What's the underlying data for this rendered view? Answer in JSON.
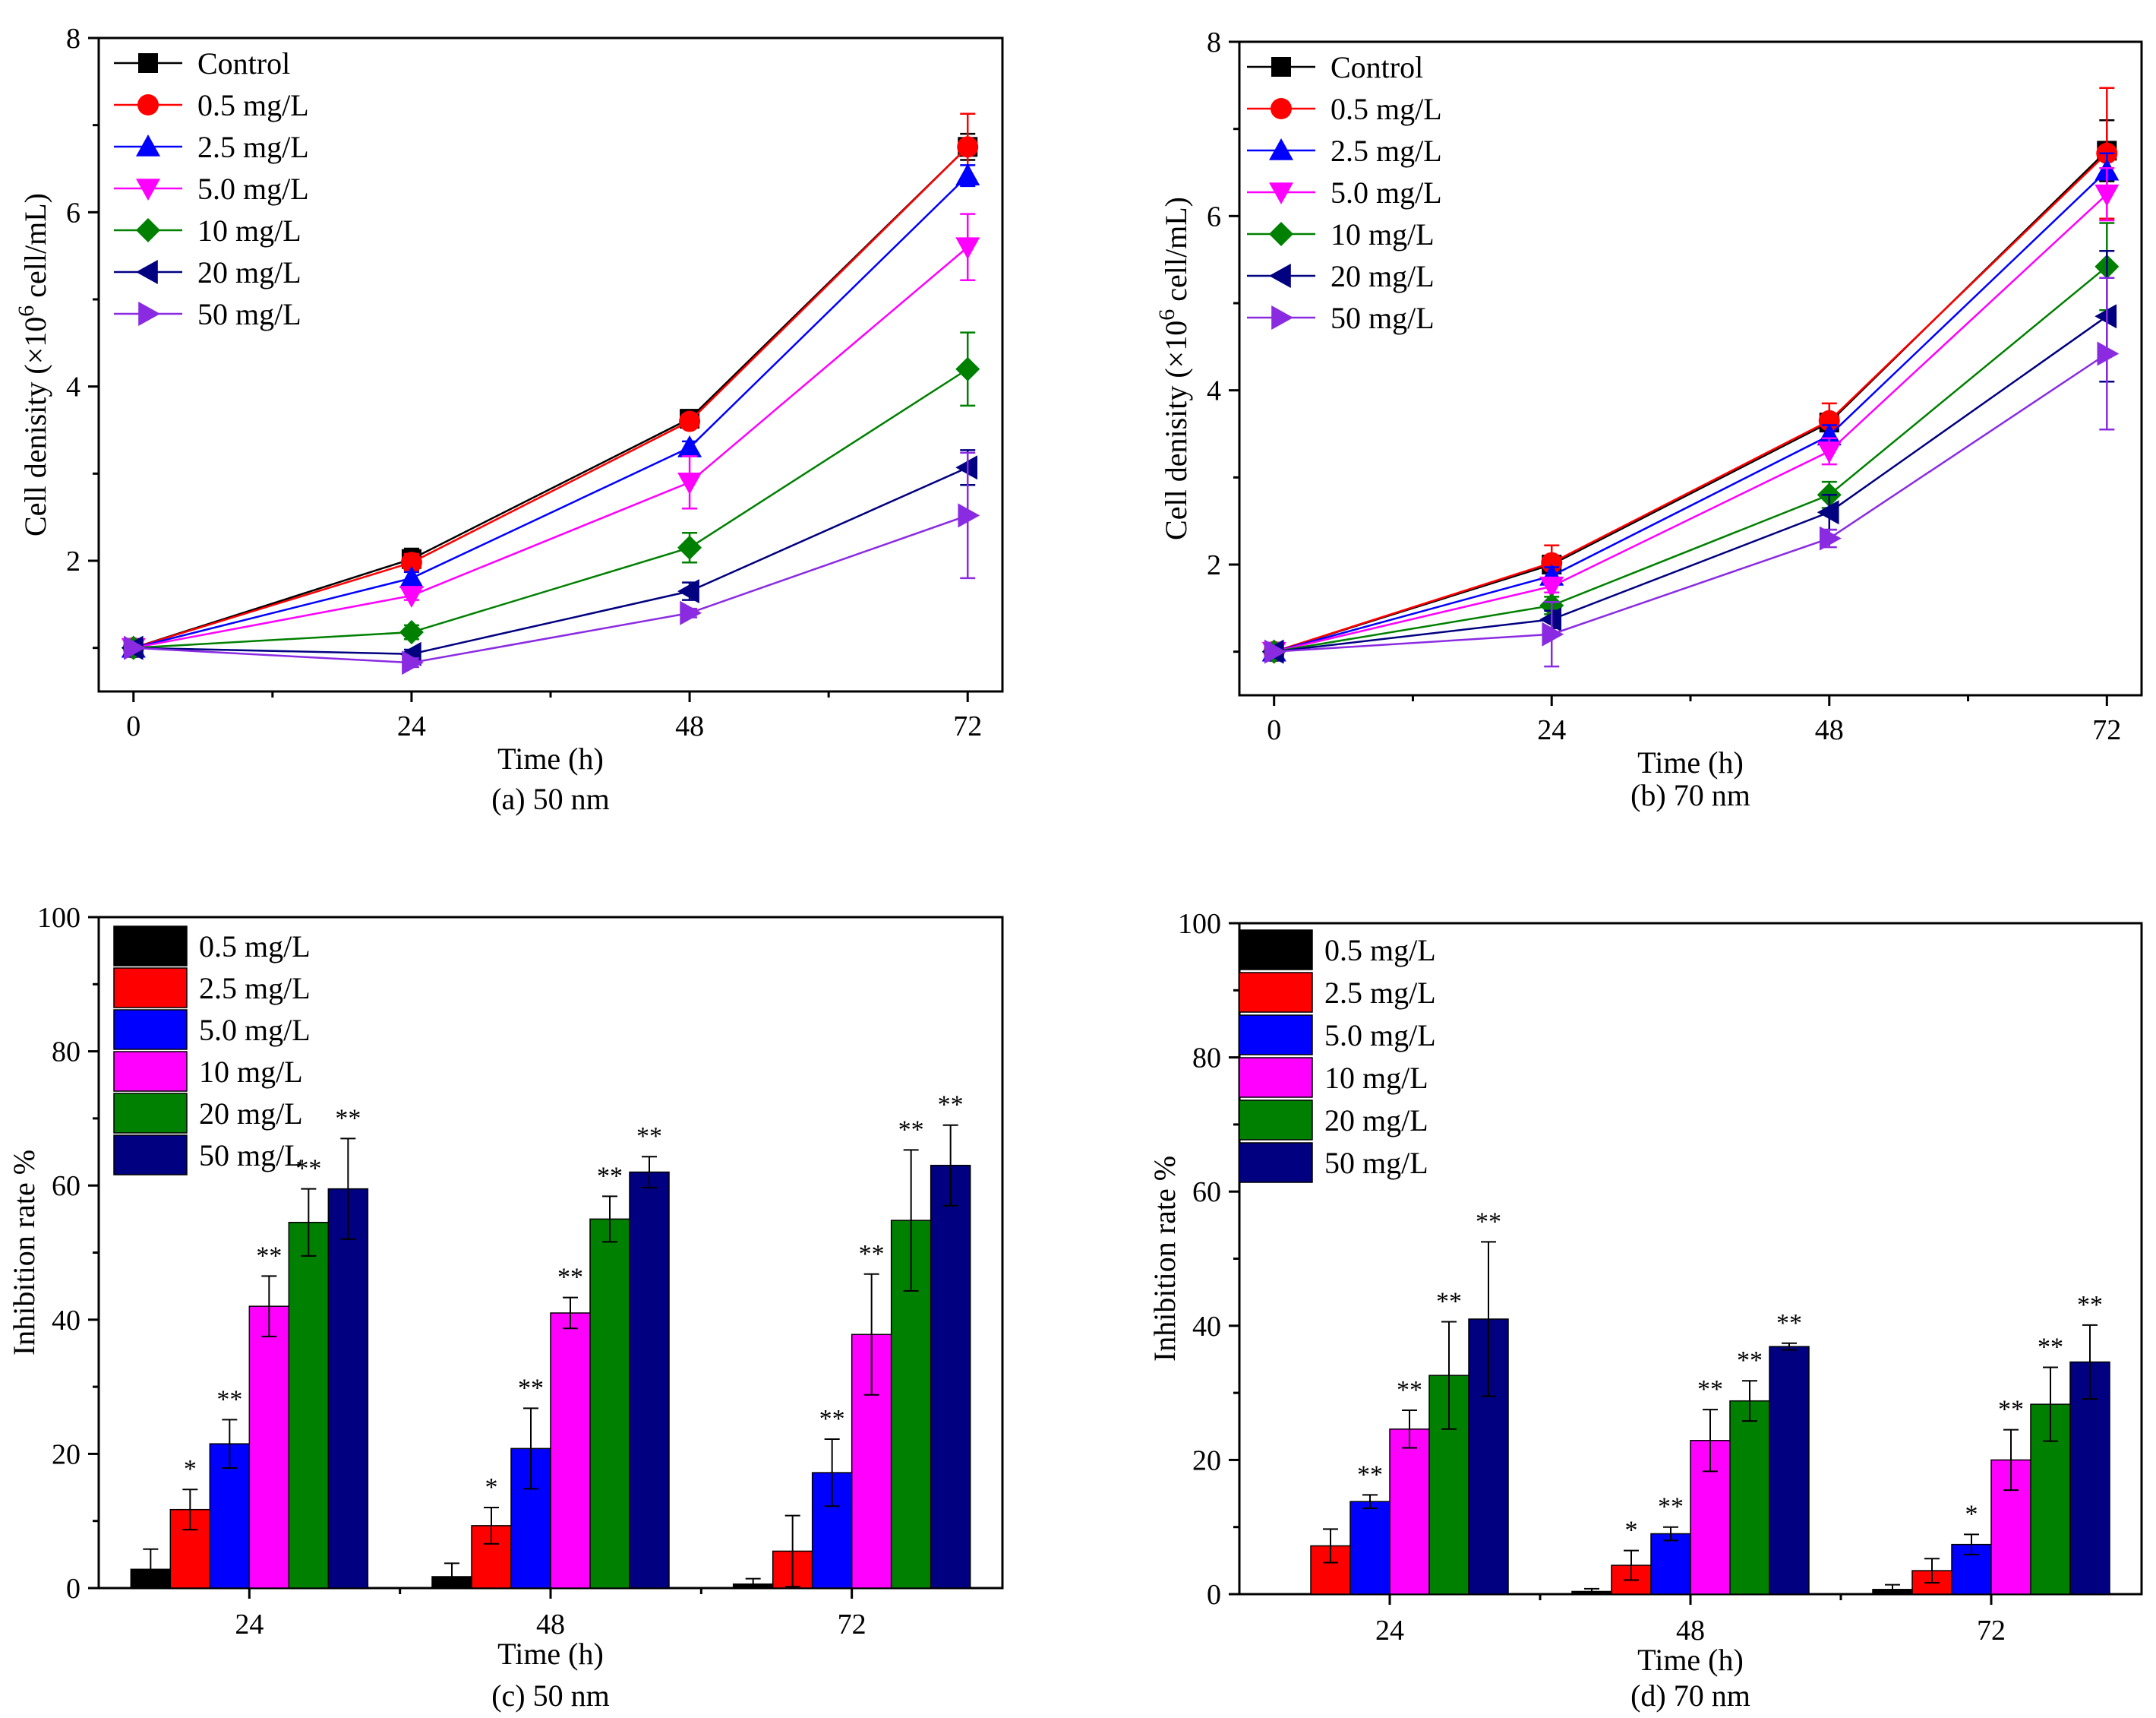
{
  "chart_data": [
    {
      "id": "a",
      "type": "line",
      "caption": "(a) 50 nm",
      "xlabel": "Time (h)",
      "ylabel_main": "Cell denisity (×10",
      "ylabel_sup": "6",
      "ylabel_tail": " cell/mL)",
      "x": [
        0,
        24,
        48,
        72
      ],
      "xticks": [
        "0",
        "24",
        "48",
        "72"
      ],
      "xlim": [
        -3,
        75
      ],
      "ylim": [
        0.5,
        8
      ],
      "yticks": [
        2,
        4,
        6,
        8
      ],
      "yticklabels": [
        "2",
        "4",
        "6",
        "8"
      ],
      "series": [
        {
          "name": "Control",
          "color": "#000000",
          "marker": "square",
          "values": [
            1.0,
            2.02,
            3.63,
            6.75
          ],
          "err": [
            0,
            0.12,
            0.05,
            0.15
          ]
        },
        {
          "name": "0.5 mg/L",
          "color": "#ff0000",
          "marker": "circle",
          "values": [
            1.0,
            1.98,
            3.6,
            6.75
          ],
          "err": [
            0,
            0.1,
            0.06,
            0.38
          ]
        },
        {
          "name": "2.5 mg/L",
          "color": "#0000ff",
          "marker": "triangle-up",
          "values": [
            1.0,
            1.8,
            3.3,
            6.42
          ],
          "err": [
            0,
            0.07,
            0.07,
            0.12
          ]
        },
        {
          "name": "5.0 mg/L",
          "color": "#ff00ff",
          "marker": "triangle-down",
          "values": [
            1.0,
            1.6,
            2.9,
            5.6
          ],
          "err": [
            0,
            0.05,
            0.3,
            0.38
          ]
        },
        {
          "name": "10  mg/L",
          "color": "#008000",
          "marker": "diamond",
          "values": [
            1.0,
            1.18,
            2.15,
            4.2
          ],
          "err": [
            0,
            0.08,
            0.17,
            0.42
          ]
        },
        {
          "name": "20  mg/L",
          "color": "#000080",
          "marker": "triangle-left",
          "values": [
            1.0,
            0.93,
            1.65,
            3.07
          ],
          "err": [
            0,
            0.05,
            0.1,
            0.2
          ]
        },
        {
          "name": "50  mg/L",
          "color": "#8a2be2",
          "marker": "triangle-right",
          "values": [
            1.0,
            0.83,
            1.4,
            2.52
          ],
          "err": [
            0,
            0.05,
            0.05,
            0.72
          ]
        }
      ]
    },
    {
      "id": "b",
      "type": "line",
      "caption": "(b) 70 nm",
      "xlabel": "Time (h)",
      "ylabel_main": "Cell denisity (×10",
      "ylabel_sup": "6",
      "ylabel_tail": " cell/mL)",
      "x": [
        0,
        24,
        48,
        72
      ],
      "xticks": [
        "0",
        "24",
        "48",
        "72"
      ],
      "xlim": [
        -3,
        75
      ],
      "ylim": [
        0.5,
        8
      ],
      "yticks": [
        2,
        4,
        6,
        8
      ],
      "yticklabels": [
        "2",
        "4",
        "6",
        "8"
      ],
      "series": [
        {
          "name": "Control",
          "color": "#000000",
          "marker": "square",
          "values": [
            1.0,
            2.0,
            3.63,
            6.75
          ],
          "err": [
            0,
            0.1,
            0.08,
            0.35
          ]
        },
        {
          "name": "0.5 mg/L",
          "color": "#ff0000",
          "marker": "circle",
          "values": [
            1.0,
            2.02,
            3.65,
            6.72
          ],
          "err": [
            0,
            0.2,
            0.2,
            0.75
          ]
        },
        {
          "name": "2.5 mg/L",
          "color": "#0000ff",
          "marker": "triangle-up",
          "values": [
            1.0,
            1.87,
            3.48,
            6.52
          ],
          "err": [
            0,
            0.1,
            0.12,
            0.2
          ]
        },
        {
          "name": "5.0 mg/L",
          "color": "#ff00ff",
          "marker": "triangle-down",
          "values": [
            1.0,
            1.75,
            3.3,
            6.25
          ],
          "err": [
            0,
            0.07,
            0.15,
            0.3
          ]
        },
        {
          "name": "10  mg/L",
          "color": "#008000",
          "marker": "diamond",
          "values": [
            1.0,
            1.53,
            2.8,
            5.42
          ],
          "err": [
            0,
            0.1,
            0.15,
            0.5
          ]
        },
        {
          "name": "20  mg/L",
          "color": "#000080",
          "marker": "triangle-left",
          "values": [
            1.0,
            1.37,
            2.6,
            4.85
          ],
          "err": [
            0,
            0.1,
            0.2,
            0.75
          ]
        },
        {
          "name": "50  mg/L",
          "color": "#8a2be2",
          "marker": "triangle-right",
          "values": [
            1.0,
            1.2,
            2.3,
            4.42
          ],
          "err": [
            0,
            0.37,
            0.1,
            0.87
          ]
        }
      ]
    },
    {
      "id": "c",
      "type": "bar",
      "caption": "(c) 50 nm",
      "xlabel": "Time (h)",
      "ylabel": "Inhibition rate %",
      "categories": [
        "24",
        "48",
        "72"
      ],
      "ylim": [
        0,
        100
      ],
      "yticks": [
        0,
        20,
        40,
        60,
        80,
        100
      ],
      "yticklabels": [
        "0",
        "20",
        "40",
        "60",
        "80",
        "100"
      ],
      "series": [
        {
          "name": "0.5 mg/L",
          "color": "#000000",
          "values": [
            2.8,
            1.7,
            0.6
          ],
          "err": [
            3.0,
            2.0,
            0.8
          ],
          "sig": [
            "",
            "",
            ""
          ]
        },
        {
          "name": "2.5 mg/L",
          "color": "#ff0000",
          "values": [
            11.7,
            9.3,
            5.5
          ],
          "err": [
            3.0,
            2.7,
            5.3
          ],
          "sig": [
            "*",
            "*",
            ""
          ]
        },
        {
          "name": "5.0 mg/L",
          "color": "#0000ff",
          "values": [
            21.5,
            20.8,
            17.2
          ],
          "err": [
            3.6,
            6.0,
            5.0
          ],
          "sig": [
            "**",
            "**",
            "**"
          ]
        },
        {
          "name": "10  mg/L",
          "color": "#ff00ff",
          "values": [
            42.0,
            41.0,
            37.8
          ],
          "err": [
            4.5,
            2.3,
            9.0
          ],
          "sig": [
            "**",
            "**",
            "**"
          ]
        },
        {
          "name": "20  mg/L",
          "color": "#008000",
          "values": [
            54.5,
            55.0,
            54.8
          ],
          "err": [
            5.0,
            3.4,
            10.5
          ],
          "sig": [
            "**",
            "**",
            "**"
          ]
        },
        {
          "name": "50  mg/L",
          "color": "#000080",
          "values": [
            59.5,
            62.0,
            63.0
          ],
          "err": [
            7.5,
            2.3,
            6.0
          ],
          "sig": [
            "**",
            "**",
            "**"
          ]
        }
      ]
    },
    {
      "id": "d",
      "type": "bar",
      "caption": "(d) 70 nm",
      "xlabel": "Time (h)",
      "ylabel": "Inhibition rate %",
      "categories": [
        "24",
        "48",
        "72"
      ],
      "ylim": [
        0,
        100
      ],
      "yticks": [
        0,
        20,
        40,
        60,
        80,
        100
      ],
      "yticklabels": [
        "0",
        "20",
        "40",
        "60",
        "80",
        "100"
      ],
      "series": [
        {
          "name": "0.5 mg/L",
          "color": "#000000",
          "values": [
            0,
            0.4,
            0.7
          ],
          "err": [
            0,
            0.4,
            0.7
          ],
          "sig": [
            "",
            "",
            ""
          ]
        },
        {
          "name": "2.5 mg/L",
          "color": "#ff0000",
          "values": [
            7.2,
            4.3,
            3.5
          ],
          "err": [
            2.5,
            2.2,
            1.8
          ],
          "sig": [
            "",
            "*",
            ""
          ]
        },
        {
          "name": "5.0 mg/L",
          "color": "#0000ff",
          "values": [
            13.8,
            9.0,
            7.4
          ],
          "err": [
            1.0,
            1.0,
            1.5
          ],
          "sig": [
            "**",
            "**",
            "*"
          ]
        },
        {
          "name": "10  mg/L",
          "color": "#ff00ff",
          "values": [
            24.6,
            22.9,
            20.0
          ],
          "err": [
            2.8,
            4.6,
            4.5
          ],
          "sig": [
            "**",
            "**",
            "**"
          ]
        },
        {
          "name": "20  mg/L",
          "color": "#008000",
          "values": [
            32.6,
            28.8,
            28.3
          ],
          "err": [
            8.0,
            3.0,
            5.5
          ],
          "sig": [
            "**",
            "**",
            "**"
          ]
        },
        {
          "name": "50  mg/L",
          "color": "#000080",
          "values": [
            41.0,
            36.9,
            34.6
          ],
          "err": [
            11.5,
            0.5,
            5.5
          ],
          "sig": [
            "**",
            "**",
            "**"
          ]
        }
      ]
    }
  ]
}
